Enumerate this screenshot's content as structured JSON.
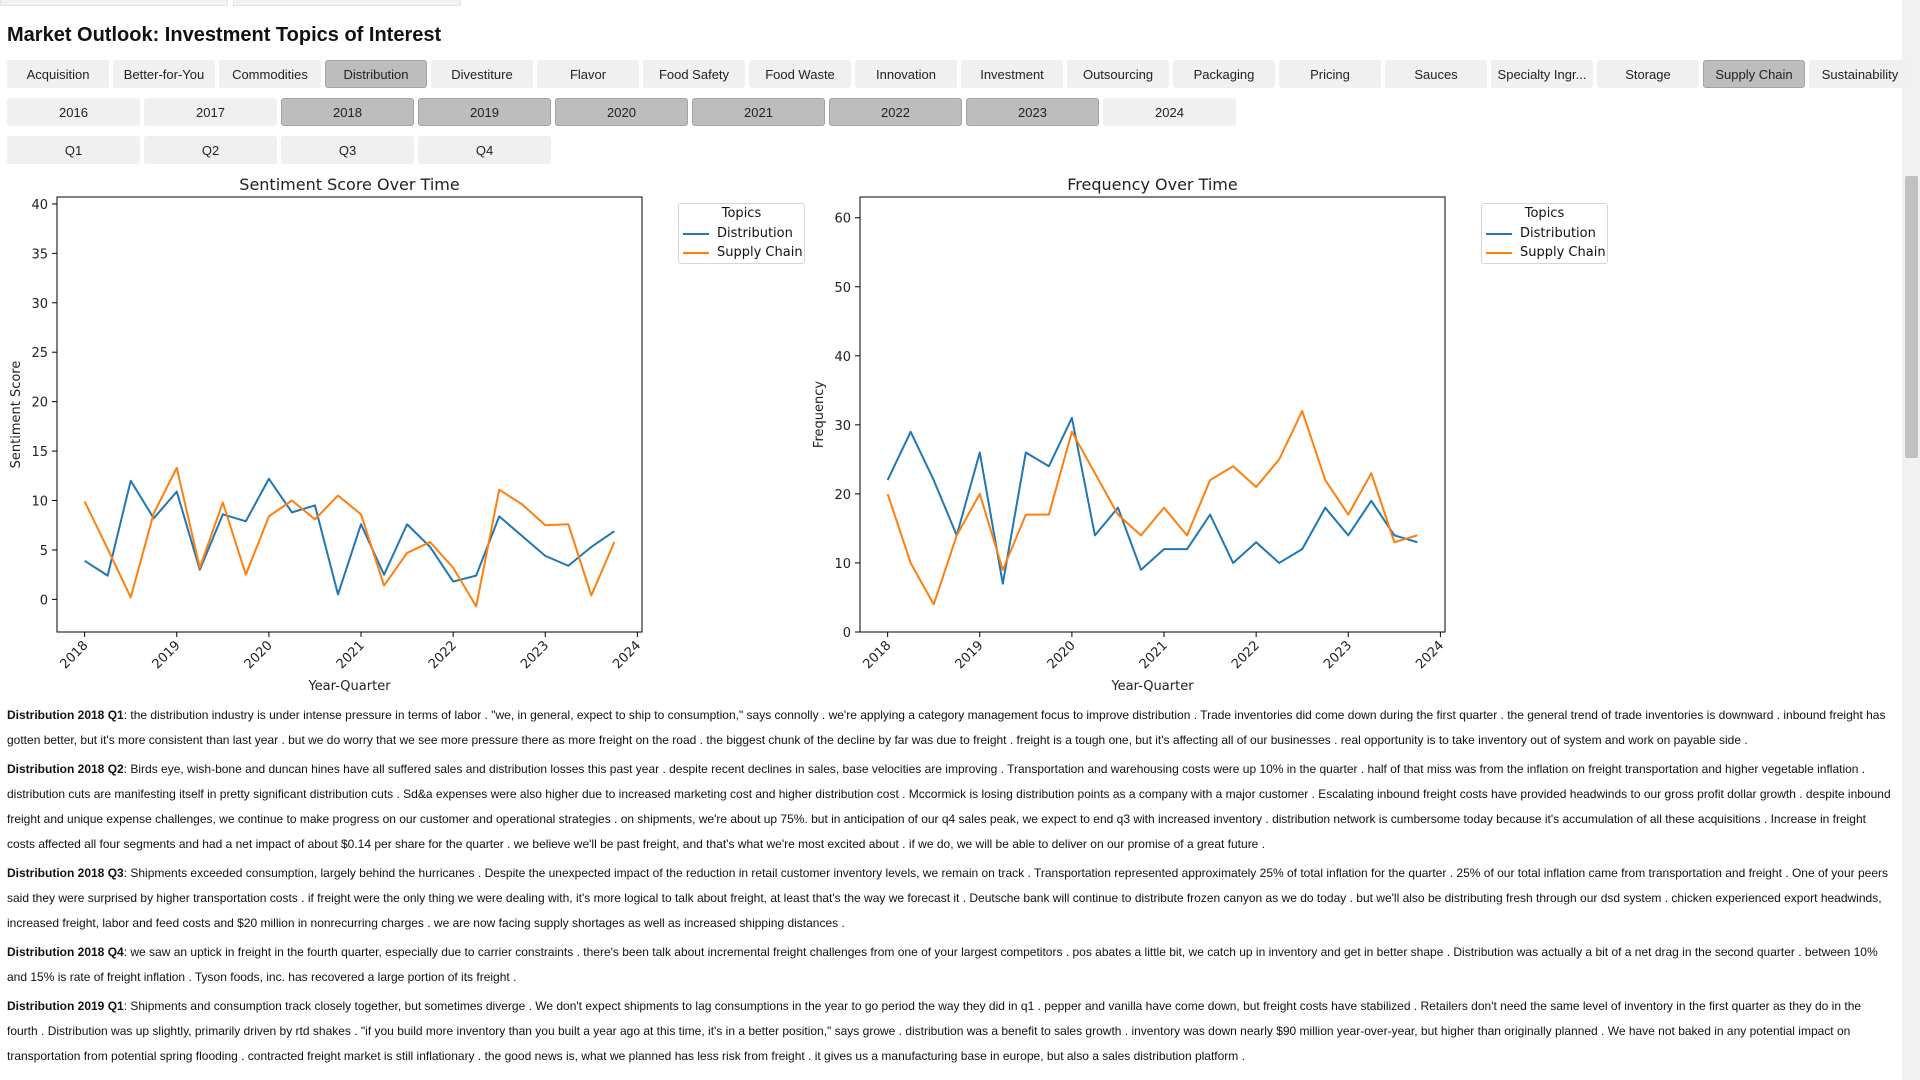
{
  "page": {
    "title": "Market Outlook: Investment Topics of Interest"
  },
  "topics": [
    {
      "label": "Acquisition",
      "selected": false
    },
    {
      "label": "Better-for-You",
      "selected": false
    },
    {
      "label": "Commodities",
      "selected": false
    },
    {
      "label": "Distribution",
      "selected": true
    },
    {
      "label": "Divestiture",
      "selected": false
    },
    {
      "label": "Flavor",
      "selected": false
    },
    {
      "label": "Food Safety",
      "selected": false
    },
    {
      "label": "Food Waste",
      "selected": false
    },
    {
      "label": "Innovation",
      "selected": false
    },
    {
      "label": "Investment",
      "selected": false
    },
    {
      "label": "Outsourcing",
      "selected": false
    },
    {
      "label": "Packaging",
      "selected": false
    },
    {
      "label": "Pricing",
      "selected": false
    },
    {
      "label": "Sauces",
      "selected": false
    },
    {
      "label": "Specialty Ingr...",
      "selected": false
    },
    {
      "label": "Storage",
      "selected": false
    },
    {
      "label": "Supply Chain",
      "selected": true
    },
    {
      "label": "Sustainability",
      "selected": false
    }
  ],
  "years": [
    {
      "label": "2016",
      "selected": false
    },
    {
      "label": "2017",
      "selected": false
    },
    {
      "label": "2018",
      "selected": true
    },
    {
      "label": "2019",
      "selected": true
    },
    {
      "label": "2020",
      "selected": true
    },
    {
      "label": "2021",
      "selected": true
    },
    {
      "label": "2022",
      "selected": true
    },
    {
      "label": "2023",
      "selected": true
    },
    {
      "label": "2024",
      "selected": false
    }
  ],
  "quarters": [
    {
      "label": "Q1",
      "selected": false
    },
    {
      "label": "Q2",
      "selected": false
    },
    {
      "label": "Q3",
      "selected": false
    },
    {
      "label": "Q4",
      "selected": false
    }
  ],
  "colors": {
    "distribution": "#1f77b4",
    "supply_chain": "#ff7f0e",
    "selected_button": "#bdbdbd",
    "button": "#f0f0f0"
  },
  "chart_data": [
    {
      "type": "line",
      "title": "Sentiment Score Over Time",
      "xlabel": "Year-Quarter",
      "ylabel": "Sentiment Score",
      "x": [
        2018.0,
        2018.25,
        2018.5,
        2018.75,
        2019.0,
        2019.25,
        2019.5,
        2019.75,
        2020.0,
        2020.25,
        2020.5,
        2020.75,
        2021.0,
        2021.25,
        2021.5,
        2021.75,
        2022.0,
        2022.25,
        2022.5,
        2022.75,
        2023.0,
        2023.25,
        2023.5,
        2023.75
      ],
      "xlim": [
        2017.7,
        2024.05
      ],
      "ylim": [
        -3.3,
        40.7
      ],
      "xticks": [
        2018,
        2019,
        2020,
        2021,
        2022,
        2023,
        2024
      ],
      "yticks": [
        0,
        5,
        10,
        15,
        20,
        25,
        30,
        35,
        40
      ],
      "grid": false,
      "legend": {
        "title": "Topics",
        "placement": "outside right"
      },
      "series": [
        {
          "name": "Distribution",
          "color": "#1f77b4",
          "values": [
            3.9,
            2.4,
            12.0,
            8.2,
            10.9,
            3.0,
            8.6,
            7.9,
            12.2,
            8.8,
            9.5,
            0.5,
            7.6,
            2.5,
            7.6,
            5.3,
            1.8,
            2.4,
            8.4,
            6.4,
            4.4,
            3.4,
            5.3,
            6.9
          ]
        },
        {
          "name": "Supply Chain",
          "color": "#ff7f0e",
          "values": [
            9.9,
            5.1,
            0.2,
            8.7,
            13.3,
            3.2,
            9.8,
            2.5,
            8.4,
            10.0,
            8.1,
            10.5,
            8.6,
            1.4,
            4.7,
            5.8,
            3.2,
            -0.7,
            11.1,
            9.6,
            7.5,
            7.6,
            0.4,
            5.8
          ]
        }
      ]
    },
    {
      "type": "line",
      "title": "Frequency Over Time",
      "xlabel": "Year-Quarter",
      "ylabel": "Frequency",
      "x": [
        2018.0,
        2018.25,
        2018.5,
        2018.75,
        2019.0,
        2019.25,
        2019.5,
        2019.75,
        2020.0,
        2020.25,
        2020.5,
        2020.75,
        2021.0,
        2021.25,
        2021.5,
        2021.75,
        2022.0,
        2022.25,
        2022.5,
        2022.75,
        2023.0,
        2023.25,
        2023.5,
        2023.75
      ],
      "xlim": [
        2017.7,
        2024.05
      ],
      "ylim": [
        0,
        63
      ],
      "xticks": [
        2018,
        2019,
        2020,
        2021,
        2022,
        2023,
        2024
      ],
      "yticks": [
        0,
        10,
        20,
        30,
        40,
        50,
        60
      ],
      "grid": false,
      "legend": {
        "title": "Topics",
        "placement": "outside right"
      },
      "series": [
        {
          "name": "Distribution",
          "color": "#1f77b4",
          "values": [
            22,
            29,
            22,
            14,
            26,
            7,
            26,
            24,
            31,
            14,
            18,
            9,
            12,
            12,
            17,
            10,
            13,
            10,
            12,
            18,
            14,
            19,
            14,
            13
          ]
        },
        {
          "name": "Supply Chain",
          "color": "#ff7f0e",
          "values": [
            20,
            10,
            4,
            14,
            20,
            9,
            17,
            17,
            29,
            23,
            17,
            14,
            18,
            14,
            22,
            24,
            21,
            25,
            32,
            22,
            17,
            23,
            13,
            14
          ]
        }
      ]
    }
  ],
  "notes": [
    {
      "heading": "Distribution 2018 Q1",
      "text": ": the distribution industry is under intense pressure in terms of labor . \"we, in general, expect to ship to consumption,\" says connolly . we're applying a category management focus to improve distribution . Trade inventories did come down during the first quarter . the general trend of trade inventories is downward . inbound freight has gotten better, but it's more consistent than last year . but we do worry that we see more pressure there as more freight on the road . the biggest chunk of the decline by far was due to freight . freight is a tough one, but it's affecting all of our businesses . real opportunity is to take inventory out of system and work on payable side ."
    },
    {
      "heading": "Distribution 2018 Q2",
      "text": ": Birds eye, wish-bone and duncan hines have all suffered sales and distribution losses this past year . despite recent declines in sales, base velocities are improving . Transportation and warehousing costs were up 10% in the quarter . half of that miss was from the inflation on freight transportation and higher vegetable inflation . distribution cuts are manifesting itself in pretty significant distribution cuts . Sd&a expenses were also higher due to increased marketing cost and higher distribution cost . Mccormick is losing distribution points as a company with a major customer . Escalating inbound freight costs have provided headwinds to our gross profit dollar growth . despite inbound freight and unique expense challenges, we continue to make progress on our customer and operational strategies . on shipments, we're about up 75%. but in anticipation of our q4 sales peak, we expect to end q3 with increased inventory . distribution network is cumbersome today because it's accumulation of all these acquisitions . Increase in freight costs affected all four segments and had a net impact of about $0.14 per share for the quarter . we believe we'll be past freight, and that's what we're most excited about . if we do, we will be able to deliver on our promise of a great future ."
    },
    {
      "heading": "Distribution 2018 Q3",
      "text": ": Shipments exceeded consumption, largely behind the hurricanes . Despite the unexpected impact of the reduction in retail customer inventory levels, we remain on track . Transportation represented approximately 25% of total inflation for the quarter . 25% of our total inflation came from transportation and freight . One of your peers said they were surprised by higher transportation costs . if freight were the only thing we were dealing with, it's more logical to talk about freight, at least that's the way we forecast it . Deutsche bank will continue to distribute frozen canyon as we do today . but we'll also be distributing fresh through our dsd system . chicken experienced export headwinds, increased freight, labor and feed costs and $20 million in nonrecurring charges . we are now facing supply shortages as well as increased shipping distances ."
    },
    {
      "heading": "Distribution 2018 Q4",
      "text": ": we saw an uptick in freight in the fourth quarter, especially due to carrier constraints . there's been talk about incremental freight challenges from one of your largest competitors . pos abates a little bit, we catch up in inventory and get in better shape . Distribution was actually a bit of a net drag in the second quarter . between 10% and 15% is rate of freight inflation . Tyson foods, inc. has recovered a large portion of its freight ."
    },
    {
      "heading": "Distribution 2019 Q1",
      "text": ": Shipments and consumption track closely together, but sometimes diverge . We don't expect shipments to lag consumptions in the year to go period the way they did in q1 . pepper and vanilla have come down, but freight costs have stabilized . Retailers don't need the same level of inventory in the first quarter as they do in the fourth . Distribution was up slightly, primarily driven by rtd shakes . \"if you build more inventory than you built a year ago at this time, it's in a better position,\" says growe . distribution was a benefit to sales growth . inventory was down nearly $90 million year-over-year, but higher than originally planned . We have not baked in any potential impact on transportation from potential spring flooding . contracted freight market is still inflationary . the good news is, what we planned has less risk from freight . it gives us a manufacturing base in europe, but also a sales distribution platform ."
    }
  ]
}
